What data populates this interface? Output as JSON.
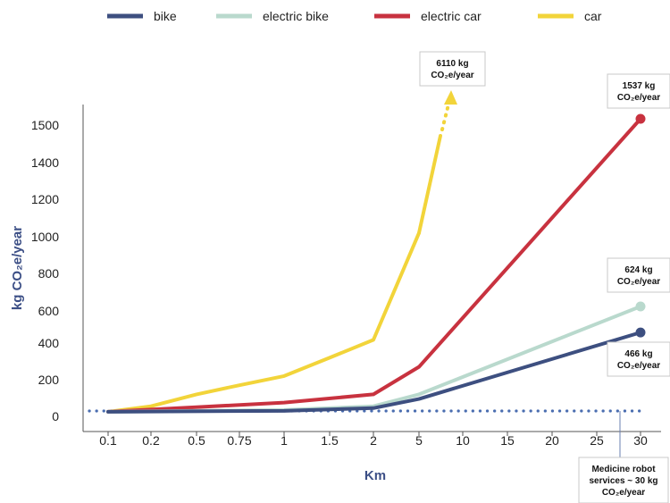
{
  "chart_data": {
    "type": "line",
    "xlabel": "Km",
    "ylabel": "kg CO₂e/year",
    "categories": [
      "0.1",
      "0.2",
      "0.5",
      "0.75",
      "1",
      "1.5",
      "2",
      "5",
      "10",
      "15",
      "20",
      "25",
      "30"
    ],
    "y_ticks": [
      "0",
      "200",
      "400",
      "600",
      "800",
      "1000",
      "1200",
      "1400",
      "1500"
    ],
    "legend_position": "top",
    "grid": false,
    "series": [
      {
        "name": "bike",
        "color": "#3d4f80",
        "points": [
          [
            "0.1",
            25
          ],
          [
            "1",
            30
          ],
          [
            "2",
            45
          ],
          [
            "5",
            95
          ],
          [
            "30",
            466
          ]
        ]
      },
      {
        "name": "electric bike",
        "color": "#b9d9cd",
        "points": [
          [
            "0.1",
            25
          ],
          [
            "1",
            35
          ],
          [
            "2",
            55
          ],
          [
            "5",
            120
          ],
          [
            "30",
            624
          ]
        ]
      },
      {
        "name": "electric car",
        "color": "#c8323f",
        "points": [
          [
            "0.1",
            25
          ],
          [
            "0.5",
            50
          ],
          [
            "1",
            75
          ],
          [
            "2",
            120
          ],
          [
            "5",
            270
          ],
          [
            "30",
            1537
          ]
        ]
      },
      {
        "name": "car",
        "color": "#f2d43a",
        "points": [
          [
            "0.1",
            25
          ],
          [
            "0.2",
            55
          ],
          [
            "0.5",
            120
          ],
          [
            "0.75",
            170
          ],
          [
            "1",
            220
          ],
          [
            "1.5",
            320
          ],
          [
            "2",
            420
          ],
          [
            "5",
            1020
          ]
        ],
        "extension_note": "dotted arrow continues upward toward 6110"
      }
    ],
    "reference_line": {
      "value": 30,
      "color": "#4a6db0",
      "style": "dotted"
    },
    "annotations": [
      {
        "target": "car",
        "lines": [
          "6110 kg",
          "CO₂e/year"
        ]
      },
      {
        "target": "electric car",
        "lines": [
          "1537 kg",
          "CO₂e/year"
        ]
      },
      {
        "target": "electric bike",
        "lines": [
          "624 kg",
          "CO₂e/year"
        ]
      },
      {
        "target": "bike",
        "lines": [
          "466 kg",
          "CO₂e/year"
        ]
      },
      {
        "target": "reference",
        "lines": [
          "Medicine robot",
          "services ~ 30 kg",
          "CO₂e/year"
        ]
      }
    ]
  }
}
